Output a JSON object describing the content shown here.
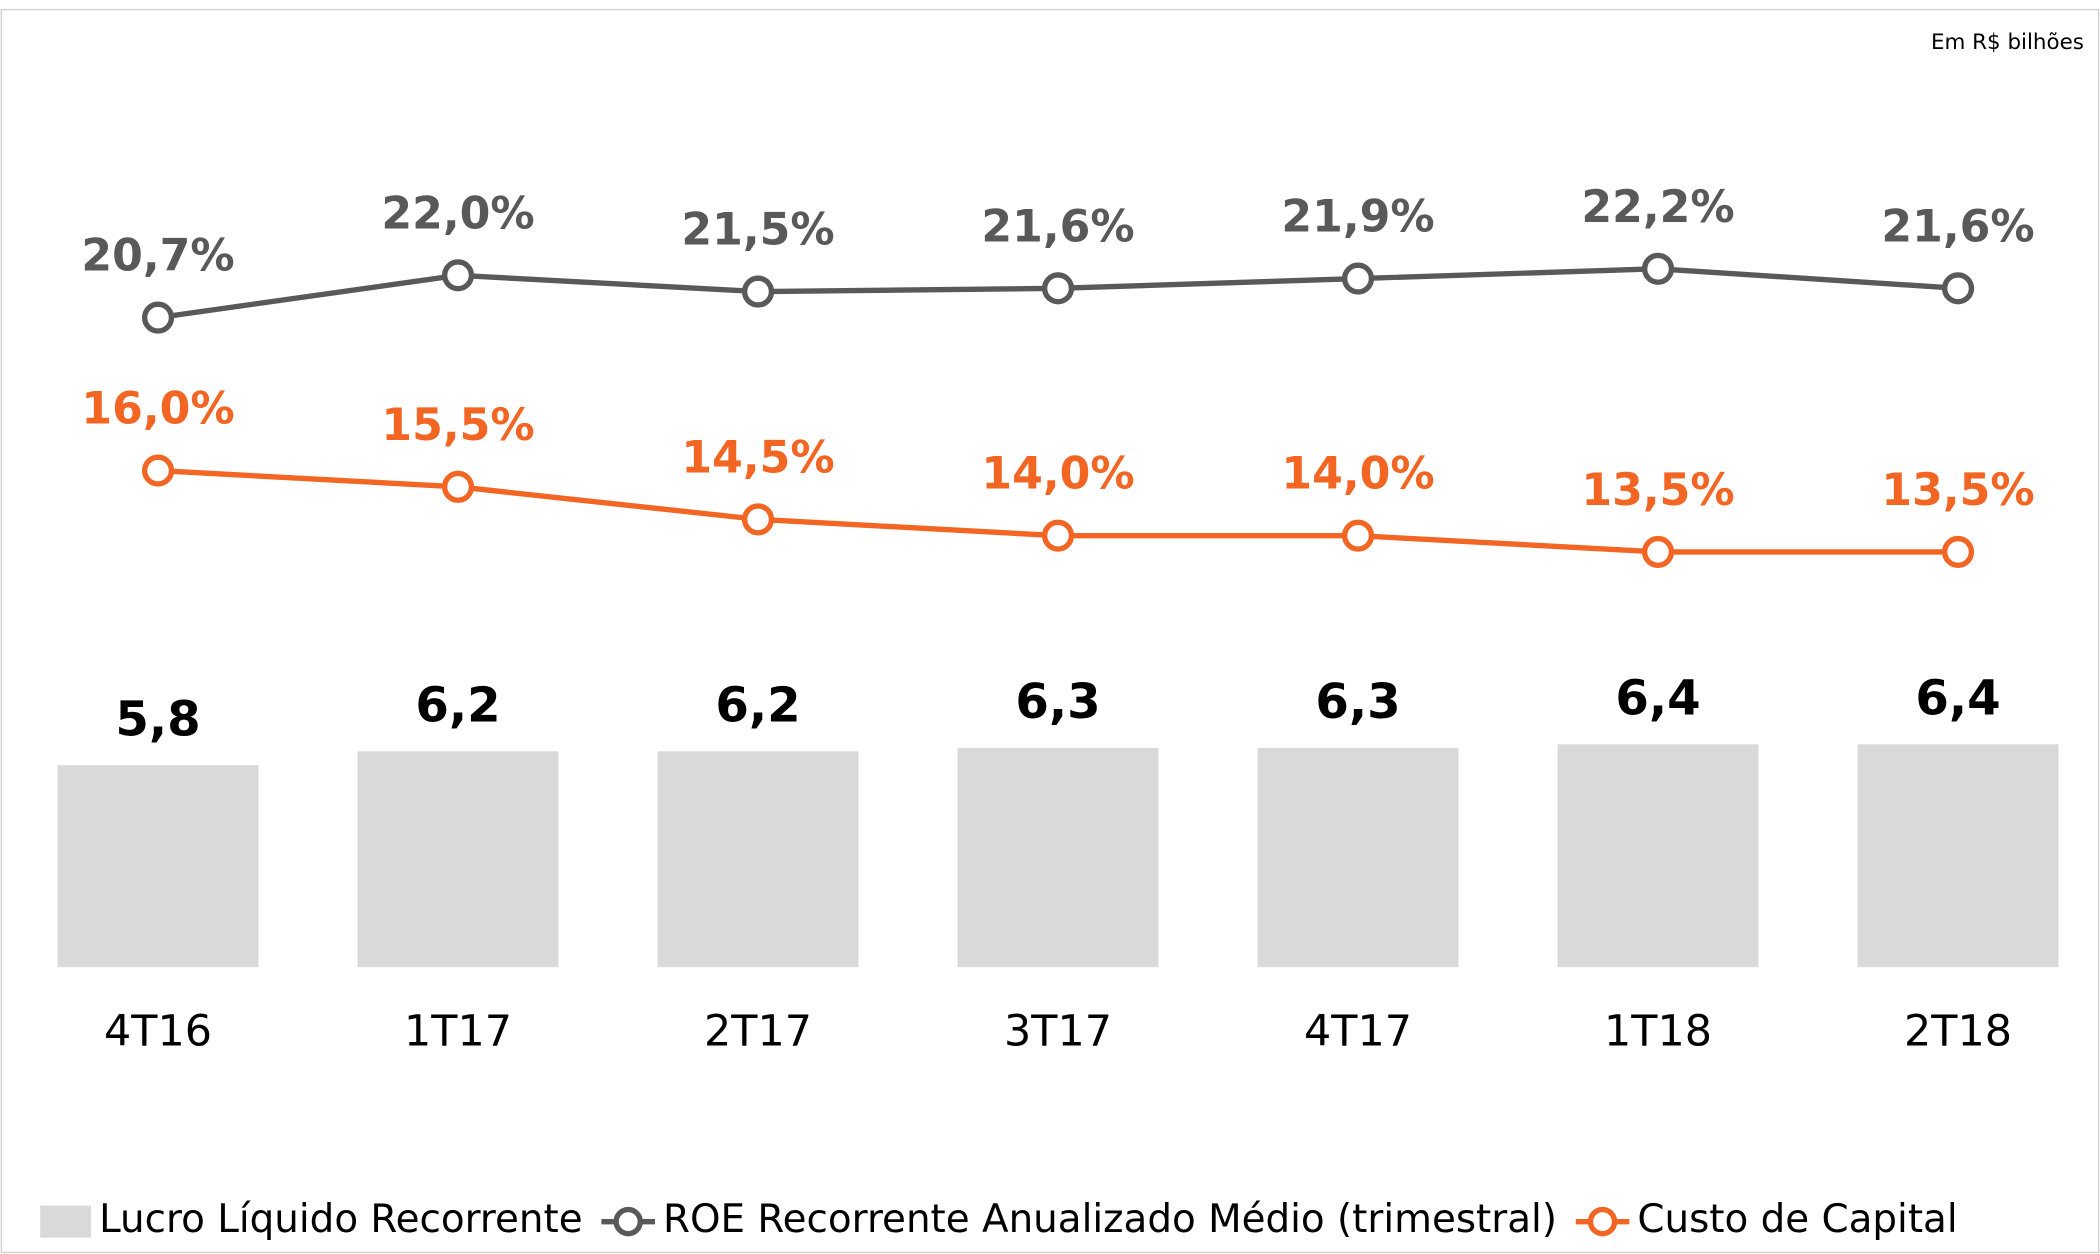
{
  "chart_data": {
    "type": "bar_line",
    "subtitle": "Em R$ bilhões",
    "categories": [
      "4T16",
      "1T17",
      "2T17",
      "3T17",
      "4T17",
      "1T18",
      "2T18"
    ],
    "series": [
      {
        "name": "Lucro Líquido Recorrente",
        "type": "bar",
        "color": "#d9d9d9",
        "values": [
          5.8,
          6.2,
          6.2,
          6.3,
          6.3,
          6.4,
          6.4
        ],
        "value_labels": [
          "5,8",
          "6,2",
          "6,2",
          "6,3",
          "6,3",
          "6,4",
          "6,4"
        ]
      },
      {
        "name": "ROE Recorrente Anualizado Médio (trimestral)",
        "type": "line",
        "color": "#595959",
        "values": [
          20.7,
          22.0,
          21.5,
          21.6,
          21.9,
          22.2,
          21.6
        ],
        "value_labels": [
          "20,7%",
          "22,0%",
          "21,5%",
          "21,6%",
          "21,9%",
          "22,2%",
          "21,6%"
        ]
      },
      {
        "name": "Custo de Capital",
        "type": "line",
        "color": "#f26522",
        "values": [
          16.0,
          15.5,
          14.5,
          14.0,
          14.0,
          13.5,
          13.5
        ],
        "value_labels": [
          "16,0%",
          "15,5%",
          "14,5%",
          "14,0%",
          "14,0%",
          "13,5%",
          "13,5%"
        ]
      }
    ]
  }
}
